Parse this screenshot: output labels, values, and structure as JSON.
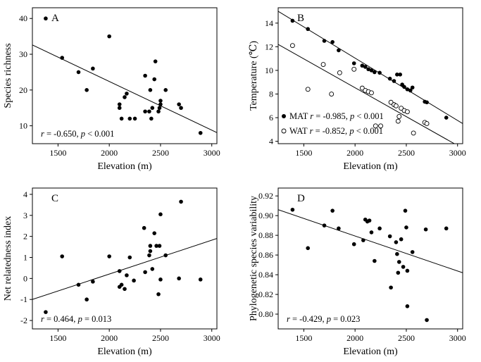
{
  "chart_data": [
    {
      "panel": "A",
      "type": "scatter",
      "xlabel": "Elevation (m)",
      "ylabel": "Species richness",
      "xlim": [
        1250,
        3050
      ],
      "ylim": [
        5,
        43
      ],
      "xticks": [
        1500,
        2000,
        2500,
        3000
      ],
      "yticks": [
        10,
        20,
        30,
        40
      ],
      "annotation": {
        "r": "-0.650",
        "p": "< 0.001"
      },
      "fit": {
        "x": [
          1250,
          3050
        ],
        "y": [
          32.6,
          8.1
        ]
      },
      "series": [
        {
          "name": "Species richness",
          "marker": "filled",
          "points": [
            [
              1380,
              40
            ],
            [
              1540,
              29
            ],
            [
              1700,
              25
            ],
            [
              1780,
              20
            ],
            [
              1840,
              26
            ],
            [
              2000,
              35
            ],
            [
              2100,
              16
            ],
            [
              2100,
              15
            ],
            [
              2120,
              12
            ],
            [
              2150,
              18
            ],
            [
              2170,
              19
            ],
            [
              2200,
              12
            ],
            [
              2250,
              12
            ],
            [
              2350,
              24
            ],
            [
              2350,
              14
            ],
            [
              2390,
              14
            ],
            [
              2400,
              20
            ],
            [
              2410,
              12
            ],
            [
              2420,
              15
            ],
            [
              2440,
              23
            ],
            [
              2450,
              28
            ],
            [
              2480,
              14
            ],
            [
              2490,
              15
            ],
            [
              2500,
              16
            ],
            [
              2500,
              17
            ],
            [
              2550,
              20
            ],
            [
              2680,
              16
            ],
            [
              2700,
              15
            ],
            [
              2890,
              8
            ]
          ]
        }
      ]
    },
    {
      "panel": "B",
      "type": "scatter",
      "xlabel": "Elevation (m)",
      "ylabel": "Temperature (℃)",
      "xlim": [
        1250,
        3050
      ],
      "ylim": [
        3.8,
        15.3
      ],
      "xticks": [
        1500,
        2000,
        2500,
        3000
      ],
      "yticks": [
        4,
        6,
        8,
        10,
        12,
        14
      ],
      "legend": [
        {
          "marker": "filled",
          "label": "MAT",
          "r": "-0.985",
          "p": "< 0.001"
        },
        {
          "marker": "open",
          "label": "WAT",
          "r": "-0.852",
          "p": "< 0.001"
        }
      ],
      "series": [
        {
          "name": "MAT",
          "marker": "filled",
          "fit": {
            "x": [
              1250,
              3050
            ],
            "y": [
              15.0,
              5.5
            ]
          },
          "points": [
            [
              1390,
              14.2
            ],
            [
              1540,
              13.5
            ],
            [
              1700,
              12.5
            ],
            [
              1780,
              12.4
            ],
            [
              1840,
              11.7
            ],
            [
              1990,
              10.6
            ],
            [
              2070,
              10.4
            ],
            [
              2100,
              10.3
            ],
            [
              2130,
              10.1
            ],
            [
              2160,
              10.0
            ],
            [
              2190,
              9.85
            ],
            [
              2240,
              9.8
            ],
            [
              2340,
              9.3
            ],
            [
              2380,
              9.1
            ],
            [
              2410,
              9.65
            ],
            [
              2440,
              9.65
            ],
            [
              2460,
              8.8
            ],
            [
              2480,
              8.6
            ],
            [
              2510,
              8.4
            ],
            [
              2540,
              8.3
            ],
            [
              2560,
              8.55
            ],
            [
              2680,
              7.35
            ],
            [
              2700,
              7.3
            ],
            [
              2890,
              6.0
            ]
          ]
        },
        {
          "name": "WAT",
          "marker": "open",
          "fit": {
            "x": [
              1250,
              3050
            ],
            "y": [
              12.2,
              3.4
            ]
          },
          "points": [
            [
              1390,
              12.1
            ],
            [
              1540,
              8.4
            ],
            [
              1690,
              10.5
            ],
            [
              1770,
              8.0
            ],
            [
              1850,
              9.8
            ],
            [
              1990,
              10.1
            ],
            [
              2070,
              8.5
            ],
            [
              2100,
              8.3
            ],
            [
              2130,
              8.2
            ],
            [
              2160,
              8.1
            ],
            [
              2200,
              5.3
            ],
            [
              2250,
              5.3
            ],
            [
              2350,
              7.3
            ],
            [
              2380,
              7.1
            ],
            [
              2400,
              7.0
            ],
            [
              2420,
              5.7
            ],
            [
              2430,
              6.1
            ],
            [
              2450,
              6.8
            ],
            [
              2480,
              6.6
            ],
            [
              2510,
              6.5
            ],
            [
              2570,
              4.7
            ],
            [
              2680,
              5.6
            ],
            [
              2700,
              5.5
            ]
          ]
        }
      ]
    },
    {
      "panel": "C",
      "type": "scatter",
      "xlabel": "Elevation (m)",
      "ylabel": "Net relatedness index",
      "xlim": [
        1250,
        3050
      ],
      "ylim": [
        -2.4,
        4.3
      ],
      "xticks": [
        1500,
        2000,
        2500,
        3000
      ],
      "yticks": [
        -2,
        -1,
        0,
        1,
        2,
        3,
        4
      ],
      "annotation": {
        "r": "0.464",
        "p": "= 0.013"
      },
      "fit": {
        "x": [
          1250,
          3050
        ],
        "y": [
          -1.0,
          1.9
        ]
      },
      "series": [
        {
          "name": "NRI",
          "marker": "filled",
          "points": [
            [
              1380,
              -1.6
            ],
            [
              1540,
              1.05
            ],
            [
              1700,
              -0.3
            ],
            [
              1780,
              -1.0
            ],
            [
              1840,
              -0.15
            ],
            [
              2000,
              1.05
            ],
            [
              2100,
              0.35
            ],
            [
              2100,
              -0.4
            ],
            [
              2120,
              -0.3
            ],
            [
              2150,
              -0.5
            ],
            [
              2170,
              0.15
            ],
            [
              2200,
              1.0
            ],
            [
              2240,
              -0.1
            ],
            [
              2340,
              2.4
            ],
            [
              2350,
              0.3
            ],
            [
              2390,
              1.1
            ],
            [
              2400,
              1.3
            ],
            [
              2400,
              1.55
            ],
            [
              2420,
              0.45
            ],
            [
              2440,
              2.15
            ],
            [
              2460,
              1.55
            ],
            [
              2480,
              -0.75
            ],
            [
              2490,
              1.55
            ],
            [
              2500,
              3.05
            ],
            [
              2500,
              -0.05
            ],
            [
              2550,
              1.1
            ],
            [
              2680,
              0.0
            ],
            [
              2700,
              3.65
            ],
            [
              2890,
              -0.05
            ]
          ]
        }
      ]
    },
    {
      "panel": "D",
      "type": "scatter",
      "xlabel": "Elevation (m)",
      "ylabel": "Phylogenetic species variability",
      "xlim": [
        1250,
        3050
      ],
      "ylim": [
        0.785,
        0.928
      ],
      "xticks": [
        1500,
        2000,
        2500,
        3000
      ],
      "yticks": [
        0.8,
        0.82,
        0.84,
        0.86,
        0.88,
        0.9,
        0.92
      ],
      "ytick_labels": [
        "0.80",
        "0.82",
        "0.84",
        "0.86",
        "0.88",
        "0.90",
        "0.92"
      ],
      "annotation": {
        "r": "-0.429",
        "p": "= 0.023"
      },
      "fit": {
        "x": [
          1250,
          3050
        ],
        "y": [
          0.906,
          0.842
        ]
      },
      "series": [
        {
          "name": "PSV",
          "marker": "filled",
          "points": [
            [
              1390,
              0.906
            ],
            [
              1540,
              0.867
            ],
            [
              1700,
              0.89
            ],
            [
              1780,
              0.905
            ],
            [
              1840,
              0.887
            ],
            [
              1990,
              0.871
            ],
            [
              2080,
              0.875
            ],
            [
              2100,
              0.896
            ],
            [
              2120,
              0.894
            ],
            [
              2140,
              0.895
            ],
            [
              2160,
              0.883
            ],
            [
              2190,
              0.854
            ],
            [
              2240,
              0.887
            ],
            [
              2340,
              0.879
            ],
            [
              2350,
              0.827
            ],
            [
              2400,
              0.873
            ],
            [
              2410,
              0.861
            ],
            [
              2420,
              0.842
            ],
            [
              2430,
              0.853
            ],
            [
              2450,
              0.876
            ],
            [
              2470,
              0.848
            ],
            [
              2490,
              0.905
            ],
            [
              2500,
              0.888
            ],
            [
              2510,
              0.808
            ],
            [
              2510,
              0.844
            ],
            [
              2560,
              0.863
            ],
            [
              2690,
              0.886
            ],
            [
              2700,
              0.794
            ],
            [
              2890,
              0.887
            ]
          ]
        }
      ]
    }
  ]
}
